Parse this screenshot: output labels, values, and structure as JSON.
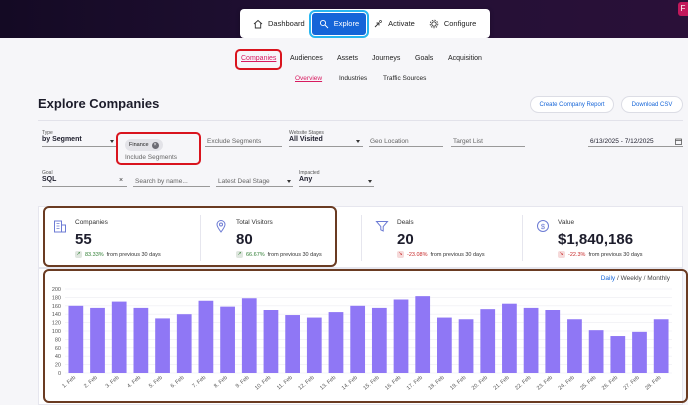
{
  "nav": {
    "items": [
      {
        "label": "Dashboard",
        "icon": "home-icon"
      },
      {
        "label": "Explore",
        "icon": "explore-icon"
      },
      {
        "label": "Activate",
        "icon": "activate-icon"
      },
      {
        "label": "Configure",
        "icon": "gear-icon"
      }
    ],
    "active": "Explore"
  },
  "subnav": {
    "tabs": [
      "Companies",
      "Audiences",
      "Assets",
      "Journeys",
      "Goals",
      "Acquisition"
    ],
    "subtabs": [
      "Overview",
      "Industries",
      "Traffic Sources"
    ]
  },
  "page": {
    "title": "Explore Companies",
    "create_report": "Create Company Report",
    "download_csv": "Download CSV"
  },
  "filters": {
    "type_label": "Type",
    "type_value": "by Segment",
    "include_chip": "Finance",
    "include_label": "Include Segments",
    "exclude_placeholder": "Exclude Segments",
    "stages_label": "Website Stages",
    "stages_value": "All Visited",
    "geo_placeholder": "Geo Location",
    "target_placeholder": "Target List",
    "date_range": "6/13/2025 - 7/12/2025",
    "goal_label": "Goal",
    "goal_value": "SQL",
    "search_placeholder": "Search by name...",
    "deal_stage_placeholder": "Latest Deal Stage",
    "impacted_label": "Impacted",
    "impacted_value": "Any"
  },
  "stats": [
    {
      "name": "Companies",
      "value": "55",
      "change": "83.33%",
      "suffix": "from previous 30 days",
      "dir": "up"
    },
    {
      "name": "Total Visitors",
      "value": "80",
      "change": "66.67%",
      "suffix": "from previous 30 days",
      "dir": "up"
    },
    {
      "name": "Deals",
      "value": "20",
      "change": "-23.08%",
      "suffix": "from previous 30 days",
      "dir": "down"
    },
    {
      "name": "Value",
      "value": "$1,840,186",
      "change": "-22.3%",
      "suffix": "from previous 30 days",
      "dir": "down"
    }
  ],
  "granularity": {
    "daily": "Daily",
    "weekly": "Weekly",
    "monthly": "Monthly",
    "sep": "/"
  },
  "colors": {
    "bar": "#8f77f5",
    "accent": "#1565d8",
    "highlight": "#d9141e",
    "annotation": "#6a3b22"
  },
  "chart_data": {
    "type": "bar",
    "categories": [
      "1. Feb",
      "2. Feb",
      "3. Feb",
      "4. Feb",
      "5. Feb",
      "6. Feb",
      "7. Feb",
      "8. Feb",
      "9. Feb",
      "10. Feb",
      "11. Feb",
      "12. Feb",
      "13. Feb",
      "14. Feb",
      "15. Feb",
      "16. Feb",
      "17. Feb",
      "18. Feb",
      "19. Feb",
      "20. Feb",
      "21. Feb",
      "22. Feb",
      "23. Feb",
      "24. Feb",
      "25. Feb",
      "26. Feb",
      "27. Feb",
      "28. Feb"
    ],
    "values": [
      160,
      155,
      170,
      155,
      130,
      140,
      172,
      158,
      178,
      150,
      138,
      132,
      145,
      160,
      155,
      175,
      183,
      132,
      128,
      152,
      165,
      155,
      150,
      128,
      102,
      88,
      98,
      128
    ],
    "ylim": [
      0,
      200
    ],
    "yticks": [
      0,
      20,
      40,
      60,
      80,
      100,
      120,
      140,
      160,
      180,
      200
    ],
    "ytick_labels": [
      "0",
      "20",
      "40",
      "60",
      "80",
      "100",
      "120",
      "140",
      "160",
      "180",
      "200"
    ]
  }
}
